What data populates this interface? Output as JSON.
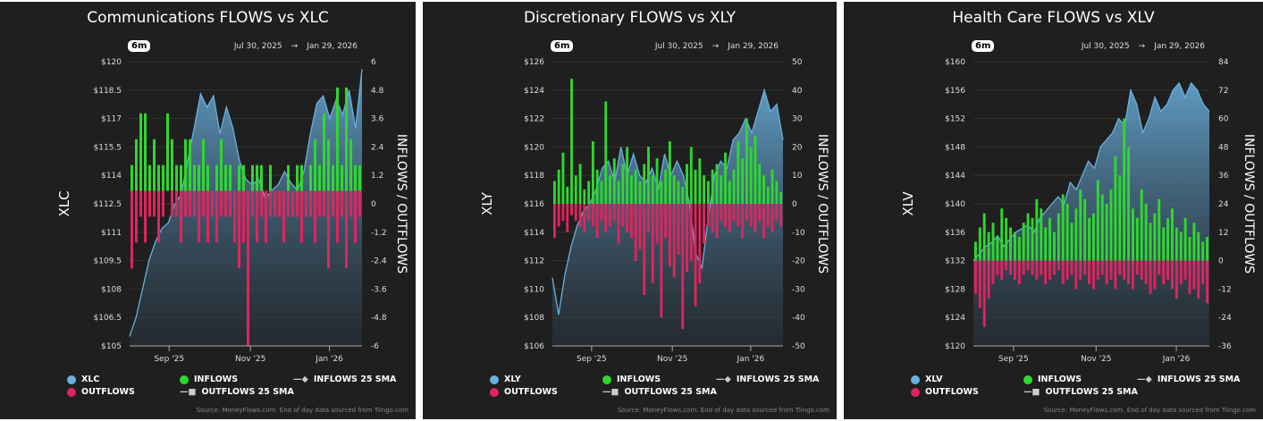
{
  "common": {
    "range": "6m",
    "date_from": "Jul 30, 2025",
    "arrow": "→",
    "date_to": "Jan 29, 2026",
    "legend_inflows": "INFLOWS",
    "legend_outflows": "OUTFLOWS",
    "legend_in_sma": "INFLOWS 25 SMA",
    "legend_out_sma": "OUTFLOWS 25 SMA",
    "source": "Source: MoneyFlows.com. End of day data sourced from Tiingo.com",
    "y2label": "INFLOWS / OUTFLOWS",
    "colors": {
      "price": "#6ab0de",
      "inflow": "#2ed82e",
      "outflow": "#e0245e",
      "bg": "#1f1f1f"
    }
  },
  "chart_data": [
    {
      "type": "bar+area",
      "title": "Communications FLOWS vs XLC",
      "ticker": "XLC",
      "ylabel": "XLC",
      "xticks": [
        {
          "label": "Sep '25",
          "pos": 0.17
        },
        {
          "label": "Nov '25",
          "pos": 0.52
        },
        {
          "label": "Jan '26",
          "pos": 0.86
        }
      ],
      "ylim": [
        105,
        120
      ],
      "yticks": [
        "$120",
        "$118.5",
        "$117",
        "$115.5",
        "$114",
        "$112.5",
        "$111",
        "$109.5",
        "$108",
        "$106.5",
        "$105"
      ],
      "y2lim": [
        -7.2,
        6
      ],
      "y2ticks": [
        "6",
        "4.8",
        "3.6",
        "2.4",
        "1.2",
        "0",
        "-1.2",
        "-2.4",
        "-3.6",
        "-4.8",
        "-6"
      ],
      "price": [
        105.5,
        106.5,
        108,
        109.5,
        110.5,
        111.2,
        111.5,
        112.5,
        113,
        114.8,
        116.5,
        118.3,
        117.6,
        118.2,
        116.2,
        117.6,
        116.5,
        114.8,
        113.8,
        113.5,
        113.8,
        112.8,
        113.2,
        113.5,
        114.2,
        113.6,
        113.2,
        114.2,
        116.2,
        117.8,
        118.2,
        117,
        118,
        117.2,
        118.5,
        116.5,
        119.6
      ],
      "inflows": [
        1.2,
        2.4,
        3.6,
        3.6,
        1.2,
        2.4,
        1.2,
        1.2,
        3.6,
        2.4,
        1.2,
        1.2,
        2.4,
        2.4,
        1.2,
        1.2,
        2.4,
        1.2,
        0,
        1.2,
        2.4,
        1.2,
        1.2,
        0,
        1.2,
        1.2,
        0,
        1.2,
        1.2,
        1.2,
        0,
        1.2,
        0,
        0,
        0,
        1.2,
        0,
        1.2,
        1.2,
        0,
        1.2,
        2.4,
        1.2,
        3.6,
        2.4,
        1.2,
        4.8,
        1.2,
        4.8,
        2.4,
        1.2,
        1.2
      ],
      "outflows": [
        -3.6,
        -2.4,
        -1.2,
        -2.4,
        -1.2,
        -1.2,
        -2.4,
        -1.2,
        0,
        -1.2,
        -1.2,
        -2.4,
        -1.2,
        -1.2,
        -1.2,
        -2.4,
        -1.2,
        -2.4,
        -1.2,
        -2.4,
        -1.2,
        -1.2,
        -1.2,
        -2.4,
        -3.6,
        -2.4,
        -7.2,
        -1.2,
        -2.4,
        -1.2,
        -2.4,
        -1.2,
        -1.2,
        -1.2,
        -2.4,
        -1.2,
        -1.2,
        -1.2,
        -2.4,
        -1.2,
        -1.2,
        -2.4,
        -1.2,
        -1.2,
        -3.6,
        -1.2,
        -2.4,
        -1.2,
        -3.6,
        -1.2,
        -2.4,
        -1.2
      ]
    },
    {
      "type": "bar+area",
      "title": "Discretionary FLOWS vs XLY",
      "ticker": "XLY",
      "ylabel": "XLY",
      "xticks": [
        {
          "label": "Sep '25",
          "pos": 0.17
        },
        {
          "label": "Nov '25",
          "pos": 0.52
        },
        {
          "label": "Jan '26",
          "pos": 0.86
        }
      ],
      "ylim": [
        106,
        126
      ],
      "yticks": [
        "$126",
        "$124",
        "$122",
        "$120",
        "$118",
        "$116",
        "$114",
        "$112",
        "$110",
        "$108",
        "$106"
      ],
      "y2lim": [
        -50,
        50
      ],
      "y2ticks": [
        "50",
        "40",
        "30",
        "20",
        "10",
        "0",
        "-10",
        "-20",
        "-30",
        "-40",
        "-50"
      ],
      "price": [
        110.8,
        108.2,
        111,
        113,
        114.5,
        115.5,
        116,
        117,
        118.5,
        119,
        117.5,
        120,
        118,
        119.5,
        118,
        117.5,
        118.5,
        117,
        119.5,
        118,
        119,
        118,
        116,
        112.5,
        111.5,
        115,
        118,
        119,
        118.5,
        120.5,
        121,
        122,
        121,
        122.5,
        124,
        122.5,
        123,
        120.5
      ],
      "inflows": [
        8,
        12,
        18,
        6,
        44,
        10,
        14,
        5,
        8,
        22,
        12,
        8,
        36,
        10,
        16,
        8,
        14,
        20,
        10,
        12,
        8,
        14,
        20,
        10,
        16,
        8,
        12,
        22,
        10,
        8,
        6,
        14,
        20,
        12,
        16,
        10,
        8,
        12,
        14,
        10,
        18,
        8,
        12,
        22,
        16,
        30,
        20,
        24,
        14,
        10,
        6,
        12,
        8,
        4
      ],
      "outflows": [
        -12,
        -8,
        -6,
        -10,
        -4,
        -6,
        -8,
        -10,
        -6,
        -8,
        -12,
        -6,
        -10,
        -8,
        -6,
        -14,
        -8,
        -10,
        -12,
        -20,
        -16,
        -32,
        -10,
        -28,
        -14,
        -40,
        -12,
        -22,
        -26,
        -18,
        -44,
        -24,
        -20,
        -36,
        -28,
        -14,
        -8,
        -10,
        -12,
        -6,
        -8,
        -10,
        -6,
        -8,
        -12,
        -6,
        -8,
        -10,
        -6,
        -12,
        -8,
        -10,
        -6,
        -8
      ]
    },
    {
      "type": "bar+area",
      "title": "Health Care FLOWS vs XLV",
      "ticker": "XLV",
      "ylabel": "XLV",
      "xticks": [
        {
          "label": "Sep '25",
          "pos": 0.17
        },
        {
          "label": "Nov '25",
          "pos": 0.52
        },
        {
          "label": "Jan '26",
          "pos": 0.86
        }
      ],
      "ylim": [
        120,
        160
      ],
      "yticks": [
        "$160",
        "$156",
        "$152",
        "$148",
        "$144",
        "$140",
        "$136",
        "$132",
        "$128",
        "$124",
        "$120"
      ],
      "y2lim": [
        -36,
        84
      ],
      "y2ticks": [
        "84",
        "72",
        "60",
        "48",
        "36",
        "24",
        "12",
        "0",
        "-12",
        "-24",
        "-36"
      ],
      "price": [
        132,
        133,
        134,
        134.5,
        135.5,
        134,
        135,
        136,
        136.5,
        137,
        136,
        138,
        139,
        140,
        141,
        140,
        143,
        142,
        144,
        146,
        145,
        148,
        149,
        150,
        152,
        151,
        156,
        154,
        150,
        152,
        155,
        153,
        154,
        156,
        157,
        155,
        157,
        156,
        154,
        153
      ],
      "inflows": [
        8,
        14,
        20,
        12,
        16,
        10,
        22,
        18,
        14,
        12,
        10,
        16,
        20,
        18,
        26,
        22,
        14,
        18,
        12,
        20,
        28,
        24,
        16,
        22,
        30,
        26,
        18,
        20,
        34,
        28,
        24,
        30,
        44,
        36,
        60,
        48,
        22,
        18,
        30,
        24,
        16,
        20,
        26,
        14,
        18,
        22,
        14,
        12,
        18,
        10,
        16,
        12,
        8,
        10
      ],
      "outflows": [
        -14,
        -20,
        -28,
        -16,
        -10,
        -6,
        -8,
        -4,
        -6,
        -8,
        -10,
        -6,
        -4,
        -6,
        -8,
        -6,
        -10,
        -8,
        -6,
        -4,
        -10,
        -8,
        -6,
        -12,
        -8,
        -6,
        -10,
        -12,
        -8,
        -6,
        -10,
        -8,
        -12,
        -6,
        -8,
        -10,
        -12,
        -6,
        -8,
        -10,
        -14,
        -12,
        -6,
        -10,
        -8,
        -12,
        -16,
        -10,
        -8,
        -14,
        -12,
        -16,
        -10,
        -18
      ]
    }
  ]
}
